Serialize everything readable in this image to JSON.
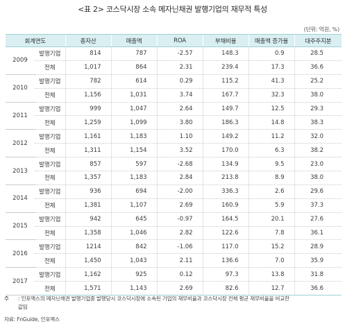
{
  "title": "<표 2> 코스닥시장 소속 메자닌채권 발행기업의 재무적 특성",
  "unit": "(단위: 억원, %)",
  "headers": [
    "회계연도",
    "",
    "총자산",
    "매출액",
    "ROA",
    "부채비율",
    "매출액 증가율",
    "대주주지분"
  ],
  "groups": [
    {
      "year": "2009",
      "rows": [
        {
          "cat": "발행기업",
          "assets": "814",
          "sales": "787",
          "roa": "-2.57",
          "debt": "148.3",
          "growth": "0.9",
          "share": "28.5"
        },
        {
          "cat": "전체",
          "assets": "1,017",
          "sales": "864",
          "roa": "2.31",
          "debt": "239.4",
          "growth": "17.3",
          "share": "36.6"
        }
      ]
    },
    {
      "year": "2010",
      "rows": [
        {
          "cat": "발행기업",
          "assets": "782",
          "sales": "614",
          "roa": "0.29",
          "debt": "115.2",
          "growth": "41.3",
          "share": "25.2"
        },
        {
          "cat": "전체",
          "assets": "1,156",
          "sales": "1,031",
          "roa": "3.74",
          "debt": "167.7",
          "growth": "32.3",
          "share": "38.0"
        }
      ]
    },
    {
      "year": "2011",
      "rows": [
        {
          "cat": "발행기업",
          "assets": "999",
          "sales": "1,047",
          "roa": "2.64",
          "debt": "149.7",
          "growth": "12.5",
          "share": "29.3"
        },
        {
          "cat": "전체",
          "assets": "1,259",
          "sales": "1,099",
          "roa": "3.80",
          "debt": "186.3",
          "growth": "14.8",
          "share": "38.3"
        }
      ]
    },
    {
      "year": "2012",
      "rows": [
        {
          "cat": "발행기업",
          "assets": "1,161",
          "sales": "1,183",
          "roa": "1.10",
          "debt": "149.2",
          "growth": "11.2",
          "share": "32.0"
        },
        {
          "cat": "전체",
          "assets": "1,311",
          "sales": "1,154",
          "roa": "3.52",
          "debt": "170.0",
          "growth": "6.3",
          "share": "38.2"
        }
      ]
    },
    {
      "year": "2013",
      "rows": [
        {
          "cat": "발행기업",
          "assets": "857",
          "sales": "597",
          "roa": "-2.68",
          "debt": "134.9",
          "growth": "9.5",
          "share": "23.0"
        },
        {
          "cat": "전체",
          "assets": "1,357",
          "sales": "1,183",
          "roa": "2.84",
          "debt": "213.8",
          "growth": "8.9",
          "share": "38.0"
        }
      ]
    },
    {
      "year": "2014",
      "rows": [
        {
          "cat": "발행기업",
          "assets": "936",
          "sales": "694",
          "roa": "-2.00",
          "debt": "336.3",
          "growth": "2.6",
          "share": "29.6"
        },
        {
          "cat": "전체",
          "assets": "1,381",
          "sales": "1,107",
          "roa": "2.69",
          "debt": "160.9",
          "growth": "5.9",
          "share": "37.3"
        }
      ]
    },
    {
      "year": "2015",
      "rows": [
        {
          "cat": "발행기업",
          "assets": "942",
          "sales": "645",
          "roa": "-0.97",
          "debt": "164.5",
          "growth": "20.1",
          "share": "27.6"
        },
        {
          "cat": "전체",
          "assets": "1,358",
          "sales": "1,046",
          "roa": "2.82",
          "debt": "122.6",
          "growth": "7.8",
          "share": "36.1"
        }
      ]
    },
    {
      "year": "2016",
      "rows": [
        {
          "cat": "발행기업",
          "assets": "1214",
          "sales": "842",
          "roa": "-1.06",
          "debt": "117.0",
          "growth": "15.2",
          "share": "28.9"
        },
        {
          "cat": "전체",
          "assets": "1,450",
          "sales": "1,043",
          "roa": "2.11",
          "debt": "136.6",
          "growth": "7.0",
          "share": "35.9"
        }
      ]
    },
    {
      "year": "2017",
      "rows": [
        {
          "cat": "발행기업",
          "assets": "1,162",
          "sales": "925",
          "roa": "0.12",
          "debt": "97.3",
          "growth": "13.8",
          "share": "31.8"
        },
        {
          "cat": "전체",
          "assets": "1,571",
          "sales": "1,143",
          "roa": "2.69",
          "debt": "82.6",
          "growth": "12.7",
          "share": "36.6"
        }
      ]
    }
  ],
  "note": {
    "label": "주",
    "text": ": 인포맥스의 메자닌채권 발행기업중 발행당시 코스닥시장에 소속된 기업의 재무비율과 코스닥시장 전체 평균 재무비율을 비교한",
    "text_cont": "값임"
  },
  "source": "자료: FnGuide, 인포맥스",
  "colors": {
    "header_bg": "#d9eff1",
    "header_line": "#9fcfd4"
  }
}
